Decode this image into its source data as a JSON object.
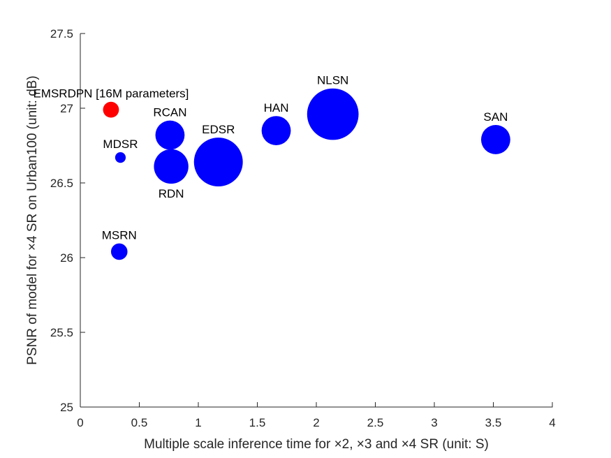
{
  "chart_data": {
    "type": "scatter",
    "title": "",
    "xlabel": "Multiple scale inference time for ×2, ×3 and ×4 SR (unit: S)",
    "ylabel": "PSNR of model for ×4 SR on Urban100 (unit: dB)",
    "xlim": [
      0,
      4
    ],
    "ylim": [
      25,
      27.5
    ],
    "xticks": [
      0,
      0.5,
      1,
      1.5,
      2,
      2.5,
      3,
      3.5,
      4
    ],
    "xtick_labels": [
      "0",
      "0.5",
      "1",
      "1.5",
      "2",
      "2.5",
      "3",
      "3.5",
      "4"
    ],
    "yticks": [
      25,
      25.5,
      26,
      26.5,
      27,
      27.5
    ],
    "ytick_labels": [
      "25",
      "25.5",
      "26",
      "26.5",
      "27",
      "27.5"
    ],
    "grid": false,
    "bubble_size_meaning": "relative parameter count",
    "points": [
      {
        "label": "EMSRDPN [16M parameters]",
        "x": 0.26,
        "y": 26.99,
        "size": 0.3,
        "color": "#ff0000",
        "label_pos": "above"
      },
      {
        "label": "MDSR",
        "x": 0.34,
        "y": 26.67,
        "size": 0.2,
        "color": "#0000ff",
        "label_pos": "above"
      },
      {
        "label": "MSRN",
        "x": 0.33,
        "y": 26.04,
        "size": 0.31,
        "color": "#0000ff",
        "label_pos": "above"
      },
      {
        "label": "RCAN",
        "x": 0.76,
        "y": 26.82,
        "size": 0.55,
        "color": "#0000ff",
        "label_pos": "above"
      },
      {
        "label": "RDN",
        "x": 0.77,
        "y": 26.61,
        "size": 0.65,
        "color": "#0000ff",
        "label_pos": "below"
      },
      {
        "label": "EDSR",
        "x": 1.17,
        "y": 26.64,
        "size": 0.92,
        "color": "#0000ff",
        "label_pos": "above"
      },
      {
        "label": "HAN",
        "x": 1.66,
        "y": 26.85,
        "size": 0.55,
        "color": "#0000ff",
        "label_pos": "above"
      },
      {
        "label": "NLSN",
        "x": 2.14,
        "y": 26.96,
        "size": 0.97,
        "color": "#0000ff",
        "label_pos": "above"
      },
      {
        "label": "SAN",
        "x": 3.52,
        "y": 26.79,
        "size": 0.55,
        "color": "#0000ff",
        "label_pos": "above"
      }
    ]
  }
}
